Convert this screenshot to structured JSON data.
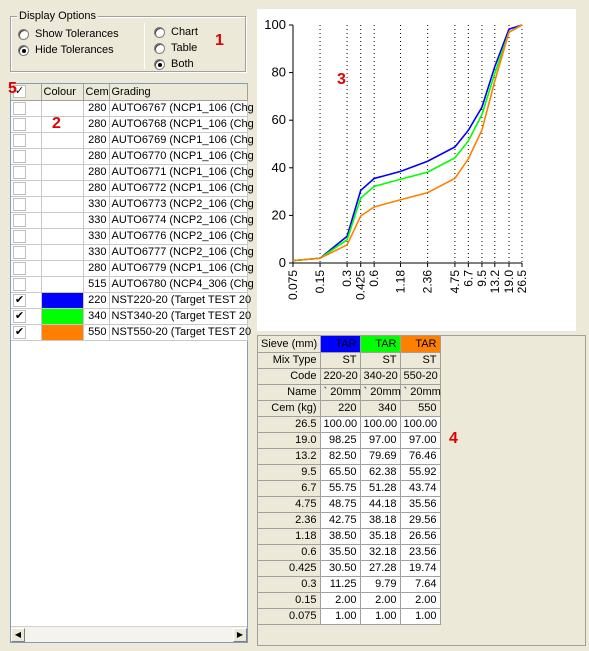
{
  "display_options": {
    "title": "Display Options",
    "tolerance_options": [
      {
        "label": "Show Tolerances",
        "selected": false
      },
      {
        "label": "Hide Tolerances",
        "selected": true
      }
    ],
    "view_options": [
      {
        "label": "Chart",
        "selected": false
      },
      {
        "label": "Table",
        "selected": false
      },
      {
        "label": "Both",
        "selected": true
      }
    ]
  },
  "markers": {
    "m1": "1",
    "m2": "2",
    "m3": "3",
    "m4": "4",
    "m5": "5"
  },
  "grading_list": {
    "headers": {
      "colour": "Colour",
      "cem": "Cem",
      "grading": "Grading"
    },
    "header_checked": true,
    "rows": [
      {
        "checked": false,
        "colour": "",
        "cem": "280",
        "grading": "AUTO6767 (NCP1_106 (Chg"
      },
      {
        "checked": false,
        "colour": "",
        "cem": "280",
        "grading": "AUTO6768 (NCP1_106 (Chg"
      },
      {
        "checked": false,
        "colour": "",
        "cem": "280",
        "grading": "AUTO6769 (NCP1_106 (Chg"
      },
      {
        "checked": false,
        "colour": "",
        "cem": "280",
        "grading": "AUTO6770 (NCP1_106 (Chg"
      },
      {
        "checked": false,
        "colour": "",
        "cem": "280",
        "grading": "AUTO6771 (NCP1_106 (Chg"
      },
      {
        "checked": false,
        "colour": "",
        "cem": "280",
        "grading": "AUTO6772 (NCP1_106 (Chg"
      },
      {
        "checked": false,
        "colour": "",
        "cem": "330",
        "grading": "AUTO6773 (NCP2_106 (Chg"
      },
      {
        "checked": false,
        "colour": "",
        "cem": "330",
        "grading": "AUTO6774 (NCP2_106 (Chg"
      },
      {
        "checked": false,
        "colour": "",
        "cem": "330",
        "grading": "AUTO6776 (NCP2_106 (Chg"
      },
      {
        "checked": false,
        "colour": "",
        "cem": "330",
        "grading": "AUTO6777 (NCP2_106 (Chg"
      },
      {
        "checked": false,
        "colour": "",
        "cem": "280",
        "grading": "AUTO6779 (NCP1_106 (Chg"
      },
      {
        "checked": false,
        "colour": "",
        "cem": "515",
        "grading": "AUTO6780 (NCP4_306 (Chg"
      },
      {
        "checked": true,
        "colour": "#0000ff",
        "cem": "220",
        "grading": "NST220-20 (Target TEST 20"
      },
      {
        "checked": true,
        "colour": "#00ff00",
        "cem": "340",
        "grading": "NST340-20 (Target TEST 20"
      },
      {
        "checked": true,
        "colour": "#ff8000",
        "cem": "550",
        "grading": "NST550-20 (Target TEST 20"
      }
    ]
  },
  "chart_data": {
    "type": "line",
    "title": "",
    "xlabel": "",
    "ylabel": "",
    "x": [
      "0.075",
      "0.15",
      "0.3",
      "0.425",
      "0.6",
      "1.18",
      "2.36",
      "4.75",
      "6.7",
      "9.5",
      "13.2",
      "19.0",
      "26.5"
    ],
    "y_ticks": [
      "0",
      "20",
      "40",
      "60",
      "80",
      "100"
    ],
    "ylim": [
      0,
      100
    ],
    "grid": "vertical dotted lines at each sieve",
    "series": [
      {
        "color": "#0000ff",
        "values": [
          1.0,
          2.0,
          11.25,
          30.5,
          35.5,
          38.5,
          42.75,
          48.75,
          55.75,
          65.5,
          82.5,
          98.25,
          100.0
        ]
      },
      {
        "color": "#00ff00",
        "values": [
          1.0,
          2.0,
          9.79,
          27.28,
          32.18,
          35.18,
          38.18,
          44.18,
          51.28,
          62.38,
          79.69,
          97.0,
          100.0
        ]
      },
      {
        "color": "#ff8000",
        "values": [
          1.0,
          2.0,
          7.64,
          19.74,
          23.56,
          26.56,
          29.56,
          35.56,
          43.74,
          55.92,
          76.46,
          97.0,
          100.0
        ]
      }
    ]
  },
  "sieve_table": {
    "columns": [
      {
        "header": "TAR",
        "color": "#0000ff",
        "mix_type": "ST",
        "code": "220-20",
        "name": "` 20mm",
        "cem": "220"
      },
      {
        "header": "TAR",
        "color": "#00ff00",
        "mix_type": "ST",
        "code": "340-20",
        "name": "` 20mm",
        "cem": "340"
      },
      {
        "header": "TAR",
        "color": "#ff8000",
        "mix_type": "ST",
        "code": "550-20",
        "name": "` 20mm",
        "cem": "550"
      }
    ],
    "row_labels": {
      "sieve": "Sieve (mm)",
      "mix_type": "Mix Type",
      "code": "Code",
      "name": "Name",
      "cem": "Cem (kg)"
    },
    "rows": [
      {
        "sieve": "26.5",
        "v": [
          "100.00",
          "100.00",
          "100.00"
        ]
      },
      {
        "sieve": "19.0",
        "v": [
          "98.25",
          "97.00",
          "97.00"
        ]
      },
      {
        "sieve": "13.2",
        "v": [
          "82.50",
          "79.69",
          "76.46"
        ]
      },
      {
        "sieve": "9.5",
        "v": [
          "65.50",
          "62.38",
          "55.92"
        ]
      },
      {
        "sieve": "6.7",
        "v": [
          "55.75",
          "51.28",
          "43.74"
        ]
      },
      {
        "sieve": "4.75",
        "v": [
          "48.75",
          "44.18",
          "35.56"
        ]
      },
      {
        "sieve": "2.36",
        "v": [
          "42.75",
          "38.18",
          "29.56"
        ]
      },
      {
        "sieve": "1.18",
        "v": [
          "38.50",
          "35.18",
          "26.56"
        ]
      },
      {
        "sieve": "0.6",
        "v": [
          "35.50",
          "32.18",
          "23.56"
        ]
      },
      {
        "sieve": "0.425",
        "v": [
          "30.50",
          "27.28",
          "19.74"
        ]
      },
      {
        "sieve": "0.3",
        "v": [
          "11.25",
          "9.79",
          "7.64"
        ]
      },
      {
        "sieve": "0.15",
        "v": [
          "2.00",
          "2.00",
          "2.00"
        ]
      },
      {
        "sieve": "0.075",
        "v": [
          "1.00",
          "1.00",
          "1.00"
        ]
      }
    ]
  }
}
